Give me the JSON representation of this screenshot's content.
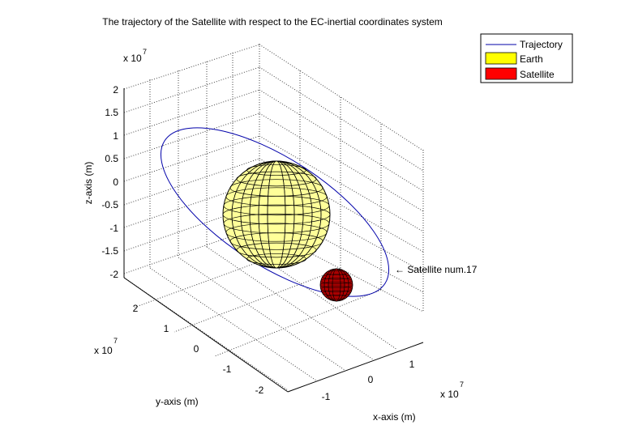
{
  "chart_data": {
    "type": "line",
    "title": "The trajectory of the Satellite with respect to the EC-inertial coordinates system",
    "xlabel": "x-axis (m)",
    "ylabel": "y-axis (m)",
    "zlabel": "z-axis (m)",
    "x_exponent": "x 10",
    "y_exponent": "x 10",
    "z_exponent": "x 10",
    "exponent_power": "7",
    "x_ticks": [
      "-1",
      "0",
      "1"
    ],
    "y_ticks": [
      "-2",
      "-1",
      "0",
      "1",
      "2"
    ],
    "z_ticks": [
      "-2",
      "-1.5",
      "-1",
      "-0.5",
      "0",
      "0.5",
      "1",
      "1.5",
      "2"
    ],
    "grid": true,
    "legend_position": "top-right",
    "legend": [
      {
        "label": "Trajectory",
        "color": "#0000aa",
        "kind": "line"
      },
      {
        "label": "Earth",
        "color": "#ffff00",
        "kind": "patch"
      },
      {
        "label": "Satellite",
        "color": "#ff0000",
        "kind": "patch"
      }
    ],
    "annotation": "← Satellite num.17",
    "earth_color": "#ffff99",
    "satellite_color": "#aa0000",
    "trajectory_color": "#0000aa"
  }
}
